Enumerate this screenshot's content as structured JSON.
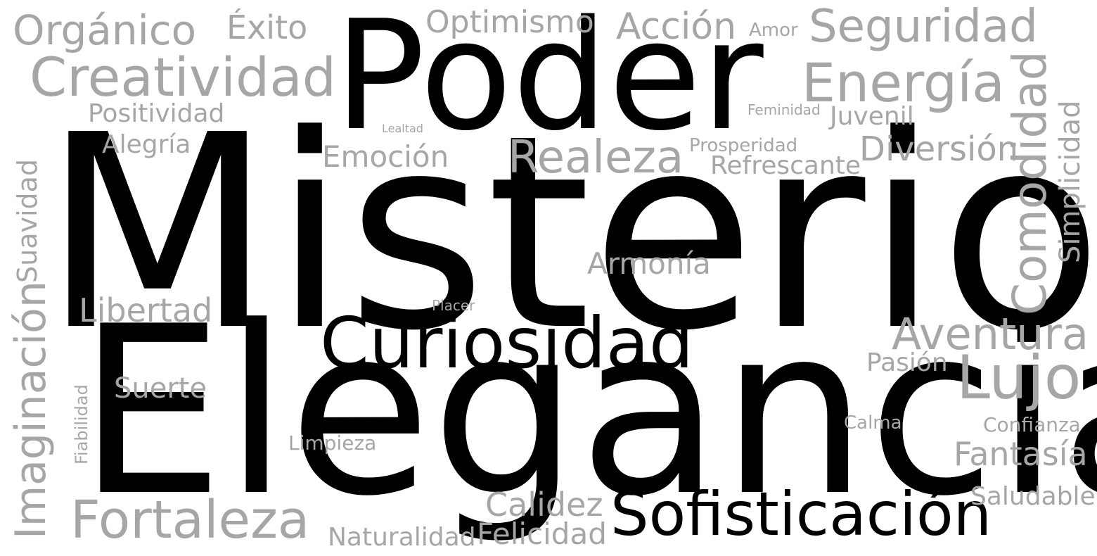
{
  "word_cloud": {
    "colors": {
      "primary": "#000000",
      "secondary": "#a6a6a6",
      "background": "#ffffff"
    },
    "words": [
      {
        "id": "misterio",
        "text": "Misterio",
        "color": "primary",
        "orientation": "horizontal"
      },
      {
        "id": "elegancia",
        "text": "Elegancia",
        "color": "primary",
        "orientation": "horizontal"
      },
      {
        "id": "poder",
        "text": "Poder",
        "color": "primary",
        "orientation": "horizontal"
      },
      {
        "id": "curiosidad",
        "text": "Curiosidad",
        "color": "primary",
        "orientation": "horizontal"
      },
      {
        "id": "sofisticacion",
        "text": "Sofisticación",
        "color": "primary",
        "orientation": "horizontal"
      },
      {
        "id": "organico",
        "text": "Orgánico",
        "color": "secondary",
        "orientation": "horizontal"
      },
      {
        "id": "exito",
        "text": "Éxito",
        "color": "secondary",
        "orientation": "horizontal"
      },
      {
        "id": "optimismo",
        "text": "Optimismo",
        "color": "secondary",
        "orientation": "horizontal"
      },
      {
        "id": "accion",
        "text": "Acción",
        "color": "secondary",
        "orientation": "horizontal"
      },
      {
        "id": "amor",
        "text": "Amor",
        "color": "secondary",
        "orientation": "horizontal"
      },
      {
        "id": "seguridad",
        "text": "Seguridad",
        "color": "secondary",
        "orientation": "horizontal"
      },
      {
        "id": "creatividad",
        "text": "Creatividad",
        "color": "secondary",
        "orientation": "horizontal"
      },
      {
        "id": "energia",
        "text": "Energía",
        "color": "secondary",
        "orientation": "horizontal"
      },
      {
        "id": "positividad",
        "text": "Positividad",
        "color": "secondary",
        "orientation": "horizontal"
      },
      {
        "id": "feminidad",
        "text": "Feminidad",
        "color": "secondary",
        "orientation": "horizontal"
      },
      {
        "id": "juvenil",
        "text": "Juvenil",
        "color": "secondary",
        "orientation": "horizontal"
      },
      {
        "id": "lealtad",
        "text": "Lealtad",
        "color": "secondary",
        "orientation": "horizontal"
      },
      {
        "id": "alegria",
        "text": "Alegría",
        "color": "secondary",
        "orientation": "horizontal"
      },
      {
        "id": "emocion",
        "text": "Emoción",
        "color": "secondary",
        "orientation": "horizontal"
      },
      {
        "id": "realeza",
        "text": "Realeza",
        "color": "secondary",
        "orientation": "horizontal"
      },
      {
        "id": "prosperidad",
        "text": "Prosperidad",
        "color": "secondary",
        "orientation": "horizontal"
      },
      {
        "id": "refrescante",
        "text": "Refrescante",
        "color": "secondary",
        "orientation": "horizontal"
      },
      {
        "id": "diversion",
        "text": "Diversión",
        "color": "secondary",
        "orientation": "horizontal"
      },
      {
        "id": "comodidad",
        "text": "Comodidad",
        "color": "secondary",
        "orientation": "vertical"
      },
      {
        "id": "simplicidad",
        "text": "Simplicidad",
        "color": "secondary",
        "orientation": "vertical"
      },
      {
        "id": "suavidad",
        "text": "Suavidad",
        "color": "secondary",
        "orientation": "vertical"
      },
      {
        "id": "armonia",
        "text": "Armonía",
        "color": "secondary",
        "orientation": "horizontal"
      },
      {
        "id": "libertad",
        "text": "Libertad",
        "color": "secondary",
        "orientation": "horizontal"
      },
      {
        "id": "placer",
        "text": "Placer",
        "color": "secondary",
        "orientation": "horizontal"
      },
      {
        "id": "aventura",
        "text": "Aventura",
        "color": "secondary",
        "orientation": "horizontal"
      },
      {
        "id": "pasion",
        "text": "Pasión",
        "color": "secondary",
        "orientation": "horizontal"
      },
      {
        "id": "lujo",
        "text": "Lujo",
        "color": "secondary",
        "orientation": "horizontal"
      },
      {
        "id": "imaginacion",
        "text": "Imaginación",
        "color": "secondary",
        "orientation": "vertical"
      },
      {
        "id": "fiabilidad",
        "text": "Fiabilidad",
        "color": "secondary",
        "orientation": "vertical"
      },
      {
        "id": "suerte",
        "text": "Suerte",
        "color": "secondary",
        "orientation": "horizontal"
      },
      {
        "id": "limpieza",
        "text": "Limpieza",
        "color": "secondary",
        "orientation": "horizontal"
      },
      {
        "id": "calma",
        "text": "Calma",
        "color": "secondary",
        "orientation": "horizontal"
      },
      {
        "id": "confianza",
        "text": "Confianza",
        "color": "secondary",
        "orientation": "horizontal"
      },
      {
        "id": "fantasia",
        "text": "Fantasía",
        "color": "secondary",
        "orientation": "horizontal"
      },
      {
        "id": "calidez",
        "text": "Calidez",
        "color": "secondary",
        "orientation": "horizontal"
      },
      {
        "id": "saludable",
        "text": "Saludable",
        "color": "secondary",
        "orientation": "horizontal"
      },
      {
        "id": "fortaleza",
        "text": "Fortaleza",
        "color": "secondary",
        "orientation": "horizontal"
      },
      {
        "id": "naturalidad",
        "text": "Naturalidad",
        "color": "secondary",
        "orientation": "horizontal"
      },
      {
        "id": "felicidad",
        "text": "Felicidad",
        "color": "secondary",
        "orientation": "horizontal"
      }
    ]
  }
}
